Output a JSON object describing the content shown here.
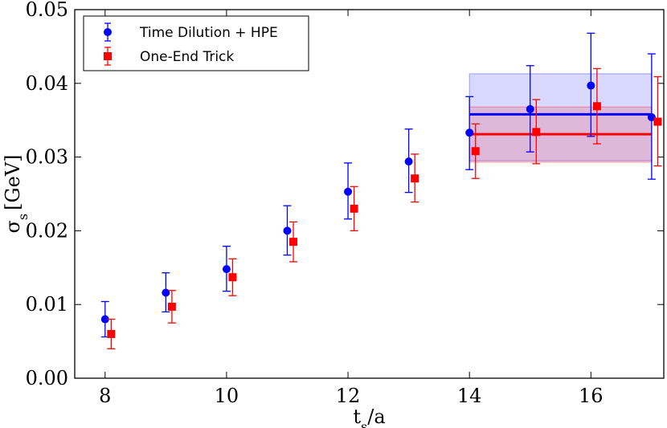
{
  "chart_data": {
    "type": "scatter",
    "xlabel_main": "t",
    "xlabel_sub": "s",
    "xlabel_rest": "/a",
    "ylabel_main": "σ",
    "ylabel_sub": "s",
    "ylabel_rest": "[GeV]",
    "xlim": [
      7.5,
      17.2
    ],
    "ylim": [
      0.0,
      0.05
    ],
    "xticks": [
      8,
      10,
      12,
      14,
      16
    ],
    "xtick_labels": [
      "8",
      "10",
      "12",
      "14",
      "16"
    ],
    "yticks": [
      0.0,
      0.01,
      0.02,
      0.03,
      0.04,
      0.05
    ],
    "ytick_labels": [
      "0.00",
      "0.01",
      "0.02",
      "0.03",
      "0.04",
      "0.05"
    ],
    "legend_position": "top-left",
    "series": [
      {
        "name": "Time Dilution + HPE",
        "color": "#0000ff",
        "marker": "circle",
        "points": [
          {
            "x": 8,
            "y": 0.008,
            "lo": 0.0056,
            "hi": 0.0104
          },
          {
            "x": 9,
            "y": 0.0116,
            "lo": 0.009,
            "hi": 0.0143
          },
          {
            "x": 10,
            "y": 0.0148,
            "lo": 0.0118,
            "hi": 0.0179
          },
          {
            "x": 11,
            "y": 0.02,
            "lo": 0.0167,
            "hi": 0.0234
          },
          {
            "x": 12,
            "y": 0.0253,
            "lo": 0.0216,
            "hi": 0.0292
          },
          {
            "x": 13,
            "y": 0.0294,
            "lo": 0.0252,
            "hi": 0.0338
          },
          {
            "x": 14,
            "y": 0.0333,
            "lo": 0.0283,
            "hi": 0.0382
          },
          {
            "x": 15,
            "y": 0.0365,
            "lo": 0.0307,
            "hi": 0.0424
          },
          {
            "x": 16,
            "y": 0.0397,
            "lo": 0.0328,
            "hi": 0.0468
          },
          {
            "x": 17,
            "y": 0.0354,
            "lo": 0.027,
            "hi": 0.044
          }
        ],
        "fit": {
          "x_start": 14,
          "x_end": 17,
          "value": 0.0358,
          "band_lo": 0.0295,
          "band_hi": 0.0413
        }
      },
      {
        "name": "One-End Trick",
        "color": "#ff0000",
        "marker": "square",
        "points": [
          {
            "x": 8.1,
            "y": 0.006,
            "lo": 0.004,
            "hi": 0.008
          },
          {
            "x": 9.1,
            "y": 0.0097,
            "lo": 0.0075,
            "hi": 0.0119
          },
          {
            "x": 10.1,
            "y": 0.0137,
            "lo": 0.0112,
            "hi": 0.0162
          },
          {
            "x": 11.1,
            "y": 0.0185,
            "lo": 0.0158,
            "hi": 0.0212
          },
          {
            "x": 12.1,
            "y": 0.023,
            "lo": 0.02,
            "hi": 0.026
          },
          {
            "x": 13.1,
            "y": 0.0271,
            "lo": 0.0239,
            "hi": 0.0304
          },
          {
            "x": 14.1,
            "y": 0.0308,
            "lo": 0.0271,
            "hi": 0.0345
          },
          {
            "x": 15.1,
            "y": 0.0334,
            "lo": 0.0291,
            "hi": 0.0378
          },
          {
            "x": 16.1,
            "y": 0.0369,
            "lo": 0.0318,
            "hi": 0.042
          },
          {
            "x": 17.1,
            "y": 0.0348,
            "lo": 0.0288,
            "hi": 0.0409
          }
        ],
        "fit": {
          "x_start": 14,
          "x_end": 17,
          "value": 0.0331,
          "band_lo": 0.0293,
          "band_hi": 0.0368
        }
      }
    ]
  }
}
